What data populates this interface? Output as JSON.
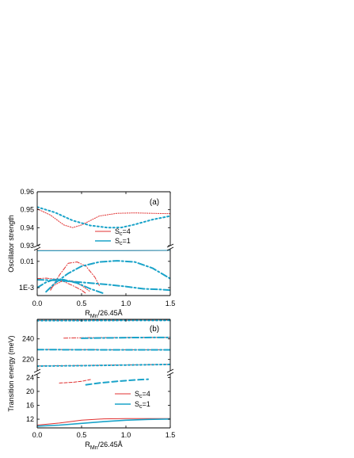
{
  "chart_data": [
    {
      "type": "line",
      "panel_label": "(a)",
      "xlabel_main": "R",
      "xlabel_sub": "Mn",
      "xlabel_rest": "/26.45Å",
      "ylabel": "Oscillator strength",
      "xlim": [
        0,
        1.5
      ],
      "x_ticks": [
        "0.0",
        "0.5",
        "1.0",
        "1.5"
      ],
      "broken_axis": true,
      "upper_axis": {
        "ylim": [
          0.93,
          0.96
        ],
        "y_ticks": [
          "0.96",
          "0.95",
          "0.94",
          "0.93"
        ]
      },
      "lower_axis": {
        "scale": "log",
        "ylim": [
          0.0005,
          0.03
        ],
        "y_ticks": [
          "0.01",
          "1E-3"
        ]
      },
      "legend": [
        {
          "label_main": "S",
          "label_sub": "c",
          "label_rest": "=4",
          "color": "#e03030"
        },
        {
          "label_main": "S",
          "label_sub": "c",
          "label_rest": "=1",
          "color": "#1aa3c9"
        }
      ],
      "series": [
        {
          "group": "Sc=4",
          "color": "#e03030",
          "style": "dotted",
          "axis": "upper",
          "x": [
            0.0,
            0.15,
            0.3,
            0.4,
            0.5,
            0.7,
            0.9,
            1.1,
            1.3,
            1.5
          ],
          "y": [
            0.9505,
            0.947,
            0.9415,
            0.94,
            0.9415,
            0.9465,
            0.948,
            0.9482,
            0.948,
            0.9478
          ]
        },
        {
          "group": "Sc=1",
          "color": "#1aa3c9",
          "style": "dotted-thick",
          "axis": "upper",
          "x": [
            0.0,
            0.2,
            0.4,
            0.6,
            0.8,
            0.95,
            1.1,
            1.3,
            1.5
          ],
          "y": [
            0.9515,
            0.9485,
            0.944,
            0.9412,
            0.94,
            0.9401,
            0.9418,
            0.9445,
            0.9465
          ]
        },
        {
          "group": "Sc=4",
          "color": "#e03030",
          "style": "solid",
          "axis": "lower",
          "x": [
            0.0,
            0.5,
            1.0,
            1.5
          ],
          "y": [
            0.0255,
            0.0256,
            0.0258,
            0.026
          ]
        },
        {
          "group": "Sc=1",
          "color": "#1aa3c9",
          "style": "solid",
          "axis": "lower",
          "x": [
            0.0,
            0.5,
            1.0,
            1.5
          ],
          "y": [
            0.0252,
            0.0254,
            0.0257,
            0.0262
          ]
        },
        {
          "group": "Sc=4",
          "color": "#e03030",
          "style": "dash-dot",
          "axis": "lower",
          "x": [
            0.15,
            0.25,
            0.35,
            0.45,
            0.55,
            0.65,
            0.7
          ],
          "y": [
            0.0008,
            0.003,
            0.0085,
            0.0095,
            0.0065,
            0.0025,
            0.0012
          ]
        },
        {
          "group": "Sc=4",
          "color": "#e03030",
          "style": "dash-dot",
          "axis": "lower",
          "x": [
            0.0,
            0.1,
            0.2,
            0.3,
            0.4,
            0.5,
            0.55
          ],
          "y": [
            0.0022,
            0.0023,
            0.0021,
            0.0017,
            0.0012,
            0.0008,
            0.0006
          ]
        },
        {
          "group": "Sc=4",
          "color": "#e03030",
          "style": "dotted",
          "axis": "lower",
          "x": [
            0.1,
            0.2,
            0.3,
            0.4,
            0.5,
            0.6
          ],
          "y": [
            0.0007,
            0.0013,
            0.0019,
            0.0018,
            0.0012,
            0.0007
          ]
        },
        {
          "group": "Sc=1",
          "color": "#1aa3c9",
          "style": "dash-dot-thick",
          "axis": "lower",
          "x": [
            0.1,
            0.2,
            0.35,
            0.5,
            0.7,
            0.9,
            1.1,
            1.3,
            1.5
          ],
          "y": [
            0.0007,
            0.0015,
            0.0035,
            0.0065,
            0.0095,
            0.0105,
            0.0095,
            0.0055,
            0.0022
          ]
        },
        {
          "group": "Sc=1",
          "color": "#1aa3c9",
          "style": "dash-dot-thick",
          "axis": "lower",
          "x": [
            0.0,
            0.2,
            0.4,
            0.6,
            0.8,
            1.0,
            1.2,
            1.4,
            1.5
          ],
          "y": [
            0.002,
            0.0019,
            0.0017,
            0.0015,
            0.0013,
            0.0011,
            0.0009,
            0.00085,
            0.0008
          ]
        },
        {
          "group": "Sc=1",
          "color": "#1aa3c9",
          "style": "dash-dot-thick",
          "axis": "lower",
          "x": [
            0.0,
            0.1,
            0.2,
            0.3,
            0.45,
            0.6,
            0.75
          ],
          "y": [
            0.001,
            0.0016,
            0.0021,
            0.002,
            0.0015,
            0.0009,
            0.0006
          ]
        }
      ]
    },
    {
      "type": "line",
      "panel_label": "(b)",
      "xlabel_main": "R",
      "xlabel_sub": "Mn",
      "xlabel_rest": "/26.45Å",
      "ylabel": "Transition energy (meV)",
      "xlim": [
        0,
        1.5
      ],
      "x_ticks": [
        "0.0",
        "0.5",
        "1.0",
        "1.5"
      ],
      "broken_axis": true,
      "upper_axis": {
        "ylim": [
          209,
          259
        ],
        "y_ticks": [
          "240",
          "220"
        ]
      },
      "lower_axis": {
        "ylim": [
          9.5,
          25
        ],
        "y_ticks": [
          "24",
          "20",
          "16",
          "12"
        ]
      },
      "legend": [
        {
          "label_main": "S",
          "label_sub": "c",
          "label_rest": "=4",
          "color": "#e03030"
        },
        {
          "label_main": "S",
          "label_sub": "c",
          "label_rest": "=1",
          "color": "#1aa3c9"
        }
      ],
      "series": [
        {
          "group": "Sc=4",
          "color": "#e03030",
          "style": "dotted",
          "axis": "upper",
          "x": [
            0.0,
            0.5,
            1.0,
            1.5
          ],
          "y": [
            258.0,
            258.0,
            258.1,
            258.2
          ]
        },
        {
          "group": "Sc=1",
          "color": "#1aa3c9",
          "style": "dotted-thick",
          "axis": "upper",
          "x": [
            0.0,
            0.5,
            1.0,
            1.5
          ],
          "y": [
            257.8,
            257.8,
            257.9,
            258.0
          ]
        },
        {
          "group": "Sc=4",
          "color": "#e03030",
          "style": "dash-dot",
          "axis": "upper",
          "x": [
            0.3,
            0.6,
            1.0,
            1.5
          ],
          "y": [
            240.8,
            241.2,
            241.4,
            241.5
          ]
        },
        {
          "group": "Sc=1",
          "color": "#1aa3c9",
          "style": "dash-dot-thick",
          "axis": "upper",
          "x": [
            0.5,
            0.8,
            1.1,
            1.5
          ],
          "y": [
            240.6,
            241.0,
            241.3,
            241.5
          ]
        },
        {
          "group": "Sc=4",
          "color": "#e03030",
          "style": "dash-dot",
          "axis": "upper",
          "x": [
            0.0,
            0.5,
            1.0,
            1.5
          ],
          "y": [
            229.8,
            229.6,
            229.5,
            229.5
          ]
        },
        {
          "group": "Sc=1",
          "color": "#1aa3c9",
          "style": "dash-dot-thick",
          "axis": "upper",
          "x": [
            0.0,
            0.5,
            1.0,
            1.5
          ],
          "y": [
            229.6,
            229.5,
            229.4,
            229.4
          ]
        },
        {
          "group": "Sc=4",
          "color": "#e03030",
          "style": "dotted",
          "axis": "upper",
          "x": [
            0.0,
            0.5,
            1.0,
            1.5
          ],
          "y": [
            213.8,
            214.2,
            214.8,
            215.3
          ]
        },
        {
          "group": "Sc=1",
          "color": "#1aa3c9",
          "style": "dotted-thick",
          "axis": "upper",
          "x": [
            0.0,
            0.5,
            1.0,
            1.5
          ],
          "y": [
            213.6,
            214.0,
            214.6,
            215.2
          ]
        },
        {
          "group": "Sc=4",
          "color": "#e03030",
          "style": "dashed",
          "axis": "lower",
          "x": [
            0.25,
            0.4,
            0.5,
            0.6
          ],
          "y": [
            22.4,
            22.6,
            22.9,
            23.4
          ]
        },
        {
          "group": "Sc=1",
          "color": "#1aa3c9",
          "style": "dashed-thick",
          "axis": "lower",
          "x": [
            0.55,
            0.7,
            0.9,
            1.1,
            1.25
          ],
          "y": [
            21.9,
            22.4,
            22.9,
            23.3,
            23.5
          ]
        },
        {
          "group": "Sc=4",
          "color": "#e03030",
          "style": "solid",
          "axis": "lower",
          "x": [
            0.0,
            0.25,
            0.5,
            0.75,
            1.0,
            1.25,
            1.5
          ],
          "y": [
            10.3,
            10.9,
            11.7,
            12.1,
            12.2,
            12.2,
            12.2
          ]
        },
        {
          "group": "Sc=1",
          "color": "#1aa3c9",
          "style": "solid-thick",
          "axis": "lower",
          "x": [
            0.0,
            0.25,
            0.5,
            0.75,
            1.0,
            1.25,
            1.5
          ],
          "y": [
            10.0,
            10.3,
            10.8,
            11.3,
            11.7,
            11.95,
            12.05
          ]
        }
      ]
    }
  ]
}
